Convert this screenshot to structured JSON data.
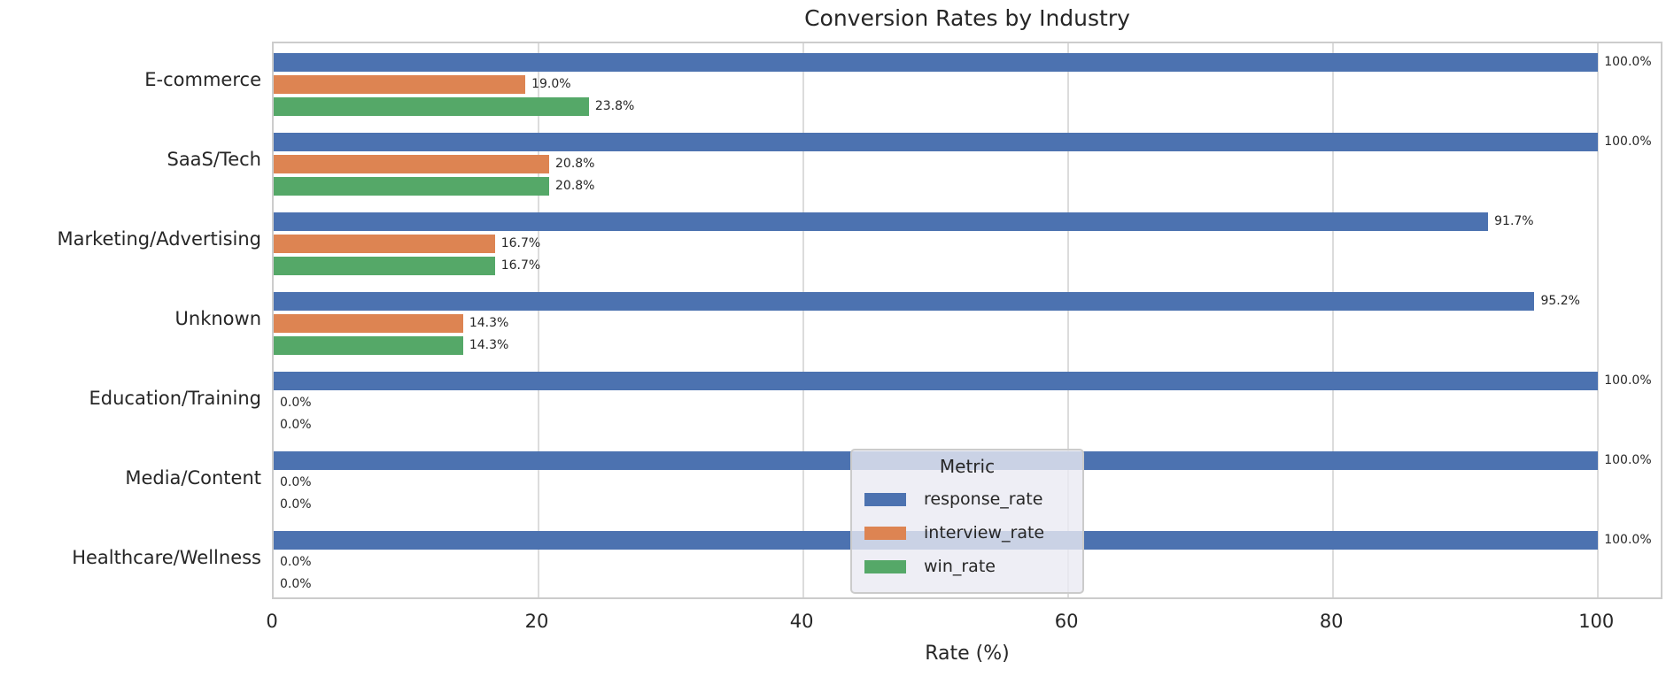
{
  "chart_data": {
    "type": "bar",
    "orientation": "horizontal",
    "title": "Conversion Rates by Industry",
    "xlabel": "Rate (%)",
    "ylabel": "",
    "xlim": [
      0,
      105
    ],
    "xticks": [
      0,
      20,
      40,
      60,
      80,
      100
    ],
    "grid": "vertical-gridlines",
    "legend": {
      "title": "Metric",
      "position": "lower-center"
    },
    "categories": [
      "E-commerce",
      "SaaS/Tech",
      "Marketing/Advertising",
      "Unknown",
      "Education/Training",
      "Media/Content",
      "Healthcare/Wellness"
    ],
    "series": [
      {
        "name": "response_rate",
        "color": "#4C72B0",
        "values": [
          100.0,
          100.0,
          91.7,
          95.2,
          100.0,
          100.0,
          100.0
        ],
        "labels": [
          "100.0%",
          "100.0%",
          "91.7%",
          "95.2%",
          "100.0%",
          "100.0%",
          "100.0%"
        ]
      },
      {
        "name": "interview_rate",
        "color": "#DD8452",
        "values": [
          19.0,
          20.8,
          16.7,
          14.3,
          0.0,
          0.0,
          0.0
        ],
        "labels": [
          "19.0%",
          "20.8%",
          "16.7%",
          "14.3%",
          "0.0%",
          "0.0%",
          "0.0%"
        ]
      },
      {
        "name": "win_rate",
        "color": "#55A868",
        "values": [
          23.8,
          20.8,
          16.7,
          14.3,
          0.0,
          0.0,
          0.0
        ],
        "labels": [
          "23.8%",
          "20.8%",
          "16.7%",
          "14.3%",
          "0.0%",
          "0.0%",
          "0.0%"
        ]
      }
    ]
  }
}
